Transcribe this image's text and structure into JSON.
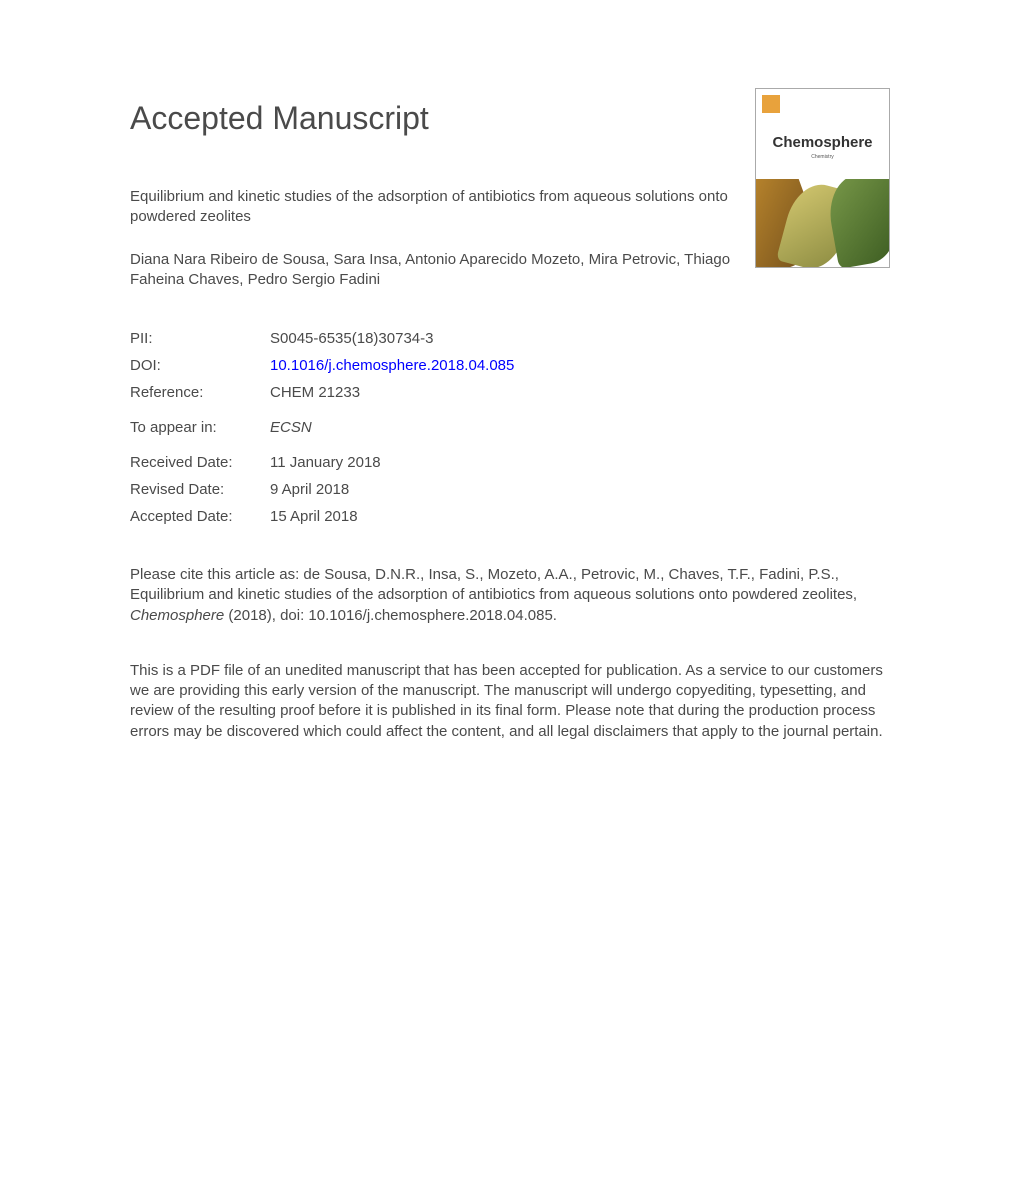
{
  "heading": "Accepted Manuscript",
  "cover": {
    "journal_name": "Chemosphere",
    "subtitle": "Chemistry",
    "issn_label": ""
  },
  "article": {
    "title": "Equilibrium and kinetic studies of the adsorption of antibiotics from aqueous solutions onto powdered zeolites",
    "authors": "Diana Nara Ribeiro de Sousa, Sara Insa, Antonio Aparecido Mozeto, Mira Petrovic, Thiago Faheina Chaves, Pedro Sergio Fadini"
  },
  "meta": {
    "pii_label": "PII:",
    "pii_value": "S0045-6535(18)30734-3",
    "doi_label": "DOI:",
    "doi_value": "10.1016/j.chemosphere.2018.04.085",
    "ref_label": "Reference:",
    "ref_value": "CHEM 21233",
    "appear_label": "To appear in:",
    "appear_value": "ECSN",
    "received_label": "Received Date:",
    "received_value": "11 January 2018",
    "revised_label": "Revised Date:",
    "revised_value": "9 April 2018",
    "accepted_label": "Accepted Date:",
    "accepted_value": "15 April 2018"
  },
  "citation": {
    "prefix": "Please cite this article as: de Sousa, D.N.R., Insa, S., Mozeto, A.A., Petrovic, M., Chaves, T.F., Fadini, P.S., Equilibrium and kinetic studies of the adsorption of antibiotics from aqueous solutions onto powdered zeolites, ",
    "journal": "Chemosphere",
    "suffix": " (2018), doi: 10.1016/j.chemosphere.2018.04.085."
  },
  "disclaimer": "This is a PDF file of an unedited manuscript that has been accepted for publication. As a service to our customers we are providing this early version of the manuscript. The manuscript will undergo copyediting, typesetting, and review of the resulting proof before it is published in its final form. Please note that during the production process errors may be discovered which could affect the content, and all legal disclaimers that apply to the journal pertain."
}
